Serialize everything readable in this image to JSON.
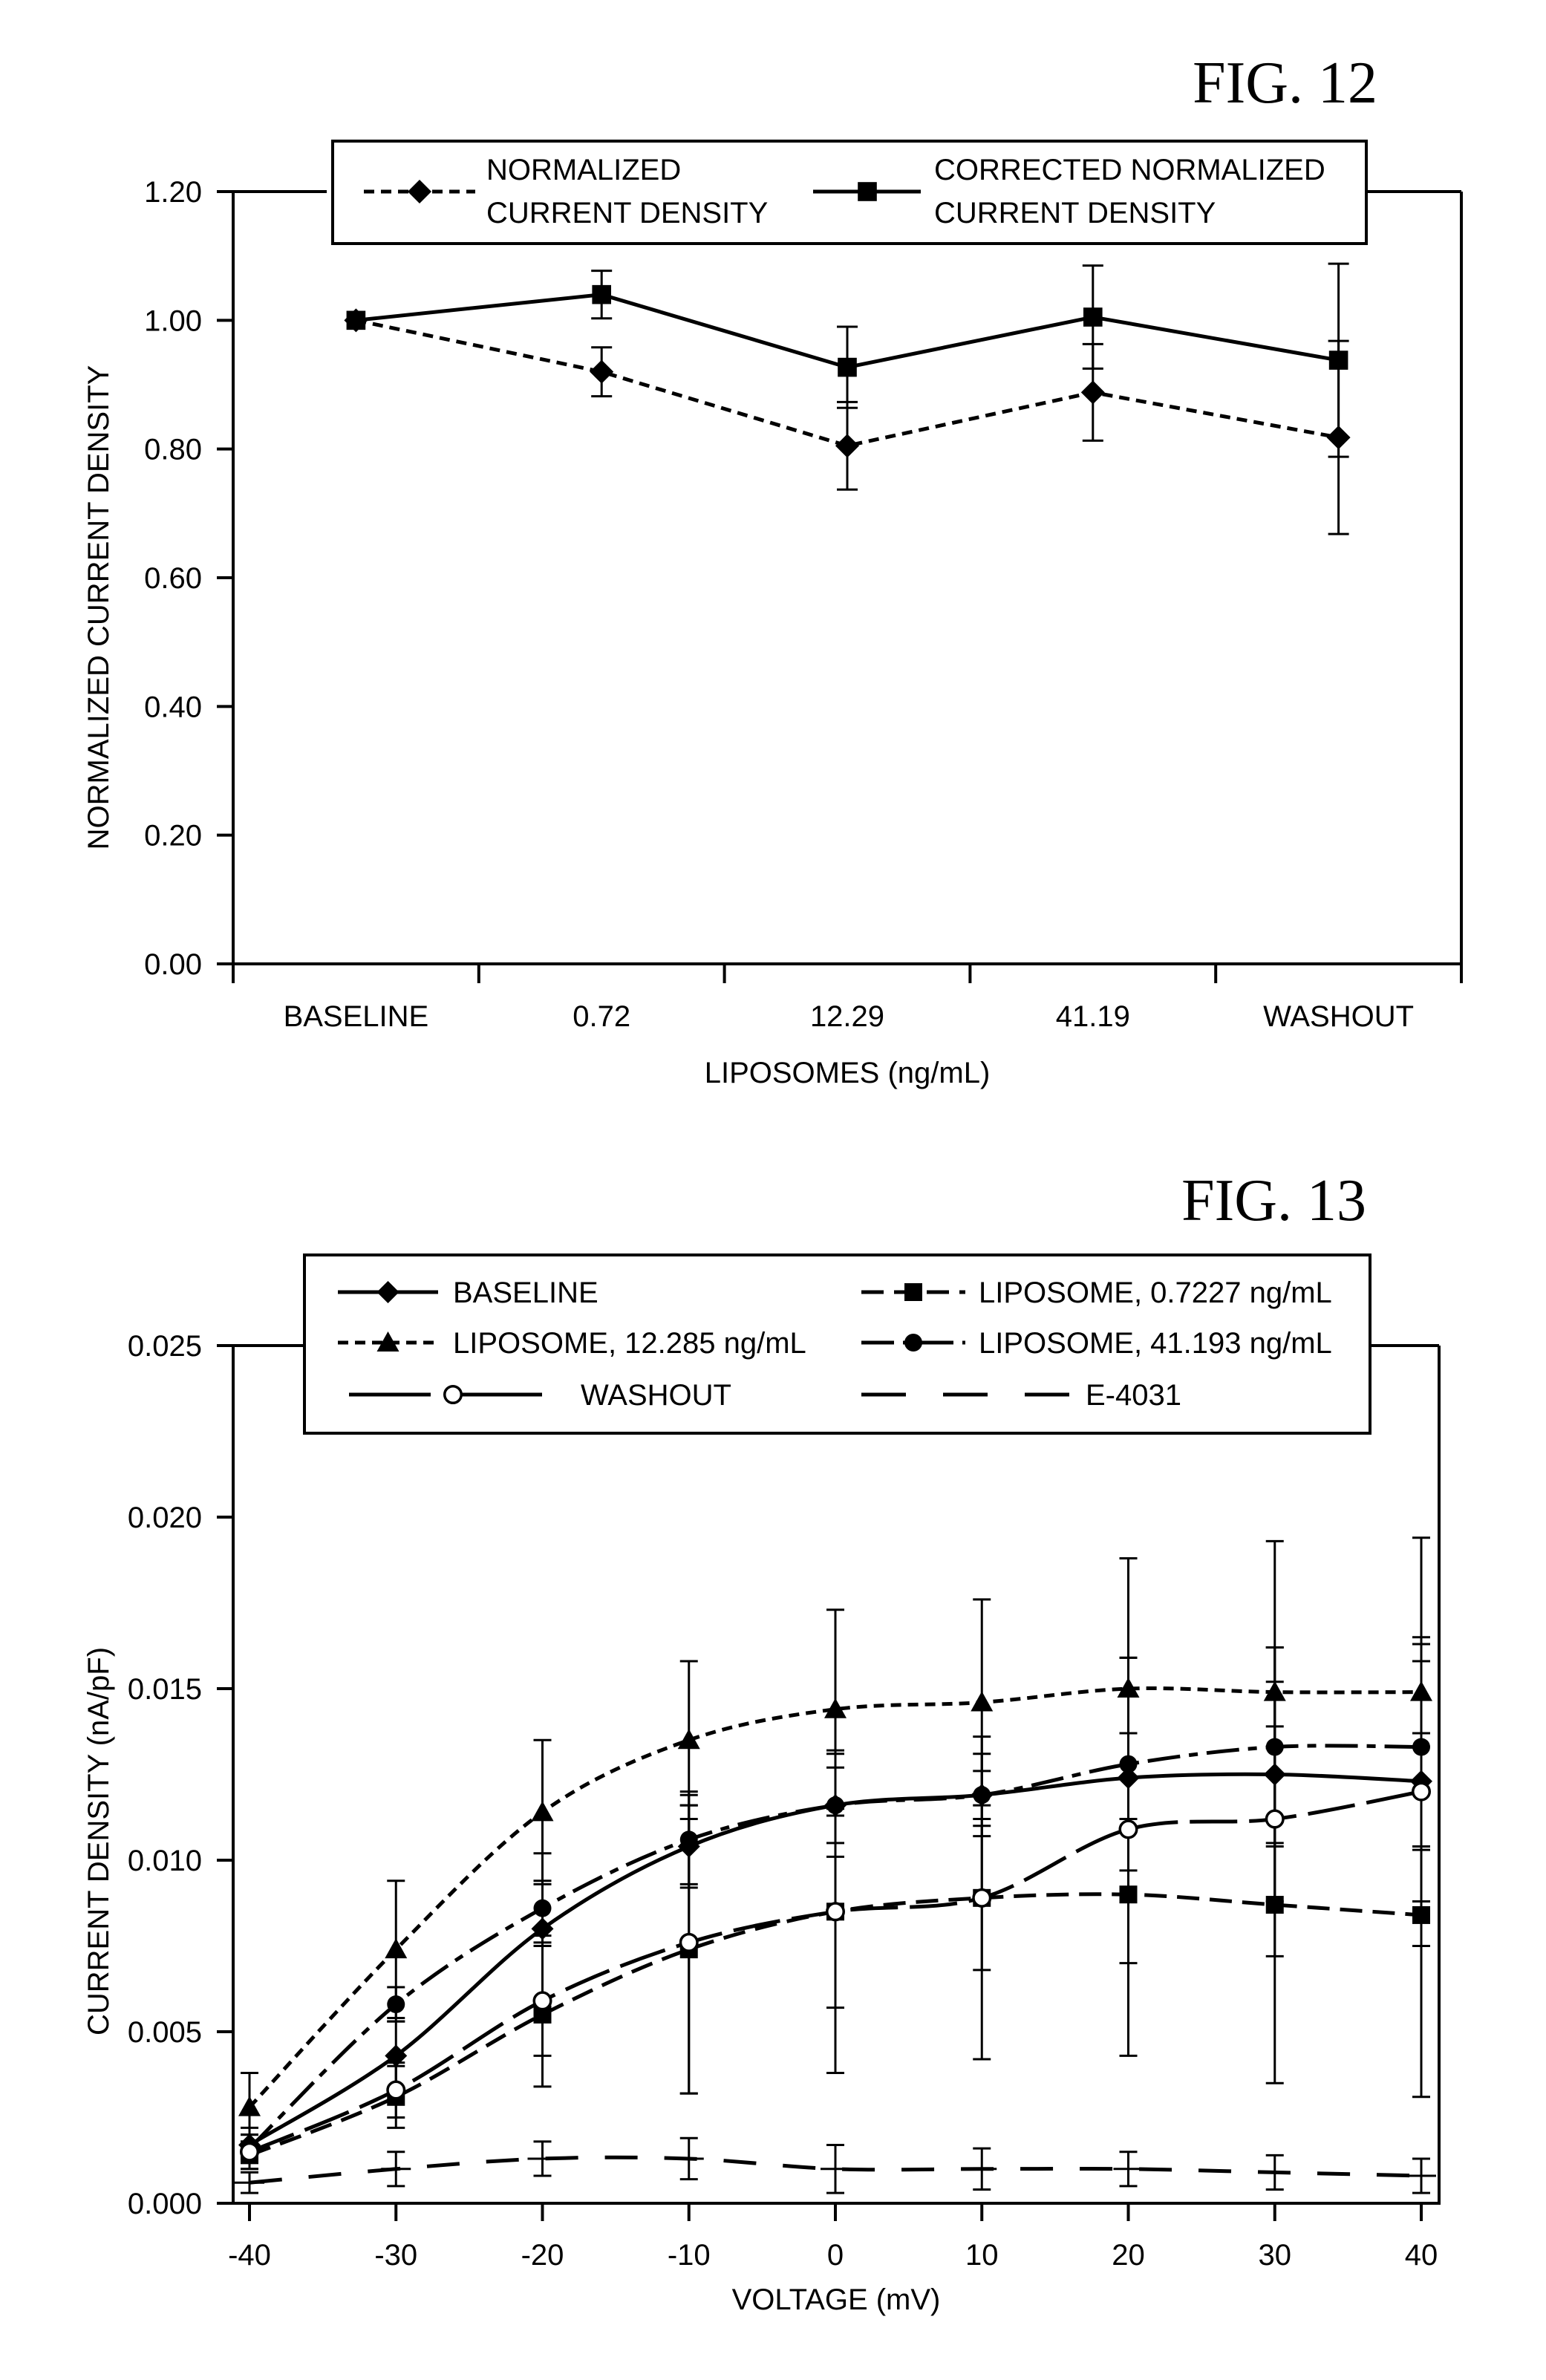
{
  "figures": [
    {
      "label": "FIG. 12"
    },
    {
      "label": "FIG. 13"
    }
  ],
  "chart_data": [
    {
      "type": "line",
      "title": "",
      "xlabel": "LIPOSOMES (ng/mL)",
      "ylabel": "NORMALIZED CURRENT DENSITY",
      "categories": [
        "BASELINE",
        "0.72",
        "12.29",
        "41.19",
        "WASHOUT"
      ],
      "ylim": [
        0,
        1.2
      ],
      "yticks": [
        "0.00",
        "0.20",
        "0.40",
        "0.60",
        "0.80",
        "1.00",
        "1.20"
      ],
      "ytick_values": [
        0,
        0.2,
        0.4,
        0.6,
        0.8,
        1.0,
        1.2
      ],
      "grid": false,
      "legend_position": "top",
      "series": [
        {
          "name": "NORMALIZED CURRENT DENSITY",
          "name_lines": [
            "NORMALIZED",
            "CURRENT DENSITY"
          ],
          "marker": "diamond",
          "line_style": "dotted",
          "values": [
            1.0,
            0.92,
            0.805,
            0.888,
            0.818
          ],
          "error": [
            0,
            0.038,
            0.068,
            0.075,
            0.15
          ]
        },
        {
          "name": "CORRECTED NORMALIZED CURRENT DENSITY",
          "name_lines": [
            "CORRECTED NORMALIZED",
            "CURRENT DENSITY"
          ],
          "marker": "square",
          "line_style": "solid",
          "values": [
            1.0,
            1.04,
            0.927,
            1.005,
            0.938
          ],
          "error": [
            0,
            0.037,
            0.063,
            0.08,
            0.15
          ]
        }
      ]
    },
    {
      "type": "line",
      "title": "",
      "xlabel": "VOLTAGE (mV)",
      "ylabel": "CURRENT DENSITY (nA/pF)",
      "x": [
        -40,
        -30,
        -20,
        -10,
        0,
        10,
        20,
        30,
        40
      ],
      "xlim": [
        -41,
        41
      ],
      "xticks": [
        "-40",
        "-30",
        "-20",
        "-10",
        "0",
        "10",
        "20",
        "30",
        "40"
      ],
      "ylim": [
        0,
        0.025
      ],
      "yticks": [
        "0.000",
        "0.005",
        "0.010",
        "0.015",
        "0.020",
        "0.025"
      ],
      "ytick_values": [
        0,
        0.005,
        0.01,
        0.015,
        0.02,
        0.025
      ],
      "grid": false,
      "legend_position": "top",
      "series": [
        {
          "name": "BASELINE",
          "marker": "diamond",
          "line_style": "solid",
          "values": [
            0.0017,
            0.0043,
            0.008,
            0.0104,
            0.0116,
            0.0119,
            0.0124,
            0.0125,
            0.0123
          ],
          "error": [
            0.0005,
            0.001,
            0.0022,
            0.0012,
            0.0015,
            0.0012,
            0.0035,
            0.0037,
            0.0035
          ]
        },
        {
          "name": "LIPOSOME, 0.7227 ng/mL",
          "marker": "square",
          "line_style": "dashed",
          "values": [
            0.0014,
            0.0031,
            0.0055,
            0.0074,
            0.0085,
            0.0089,
            0.009,
            0.0087,
            0.0084
          ],
          "error": [
            0.0004,
            0.0009,
            0.0021,
            0.0042,
            0.0047,
            0.0047,
            0.0047,
            0.0052,
            0.0053
          ]
        },
        {
          "name": "LIPOSOME, 12.285 ng/mL",
          "marker": "triangle",
          "line_style": "dotted",
          "values": [
            0.0028,
            0.0074,
            0.0114,
            0.0135,
            0.0144,
            0.0146,
            0.015,
            0.0149,
            0.0149
          ],
          "error": [
            0.001,
            0.002,
            0.0021,
            0.0023,
            0.0029,
            0.003,
            0.0038,
            0.0044,
            0.0045
          ]
        },
        {
          "name": "LIPOSOME, 41.193 ng/mL",
          "marker": "circle",
          "line_style": "dashdot",
          "values": [
            0.0016,
            0.0058,
            0.0086,
            0.0106,
            0.0116,
            0.0119,
            0.0128,
            0.0133,
            0.0133
          ],
          "error": [
            0.0004,
            0.0005,
            0.0008,
            0.0013,
            0.0011,
            0.0007,
            0.0031,
            0.0029,
            0.003
          ]
        },
        {
          "name": "WASHOUT",
          "marker": "open-circle",
          "line_style": "longdash",
          "values": [
            0.0015,
            0.0033,
            0.0059,
            0.0076,
            0.0085,
            0.0089,
            0.0109,
            0.0112,
            0.012
          ],
          "error": [
            0.0005,
            0.0008,
            0.0016,
            0.0044,
            0.0028,
            0.0021,
            0.0039,
            0.004,
            0.0045
          ]
        },
        {
          "name": "E-4031",
          "marker": "none",
          "line_style": "longdashgap",
          "values": [
            0.0006,
            0.001,
            0.0013,
            0.0013,
            0.001,
            0.001,
            0.001,
            0.0009,
            0.0008
          ],
          "error": [
            0.0003,
            0.0005,
            0.0005,
            0.0006,
            0.0007,
            0.0006,
            0.0005,
            0.0005,
            0.0005
          ]
        }
      ]
    }
  ]
}
